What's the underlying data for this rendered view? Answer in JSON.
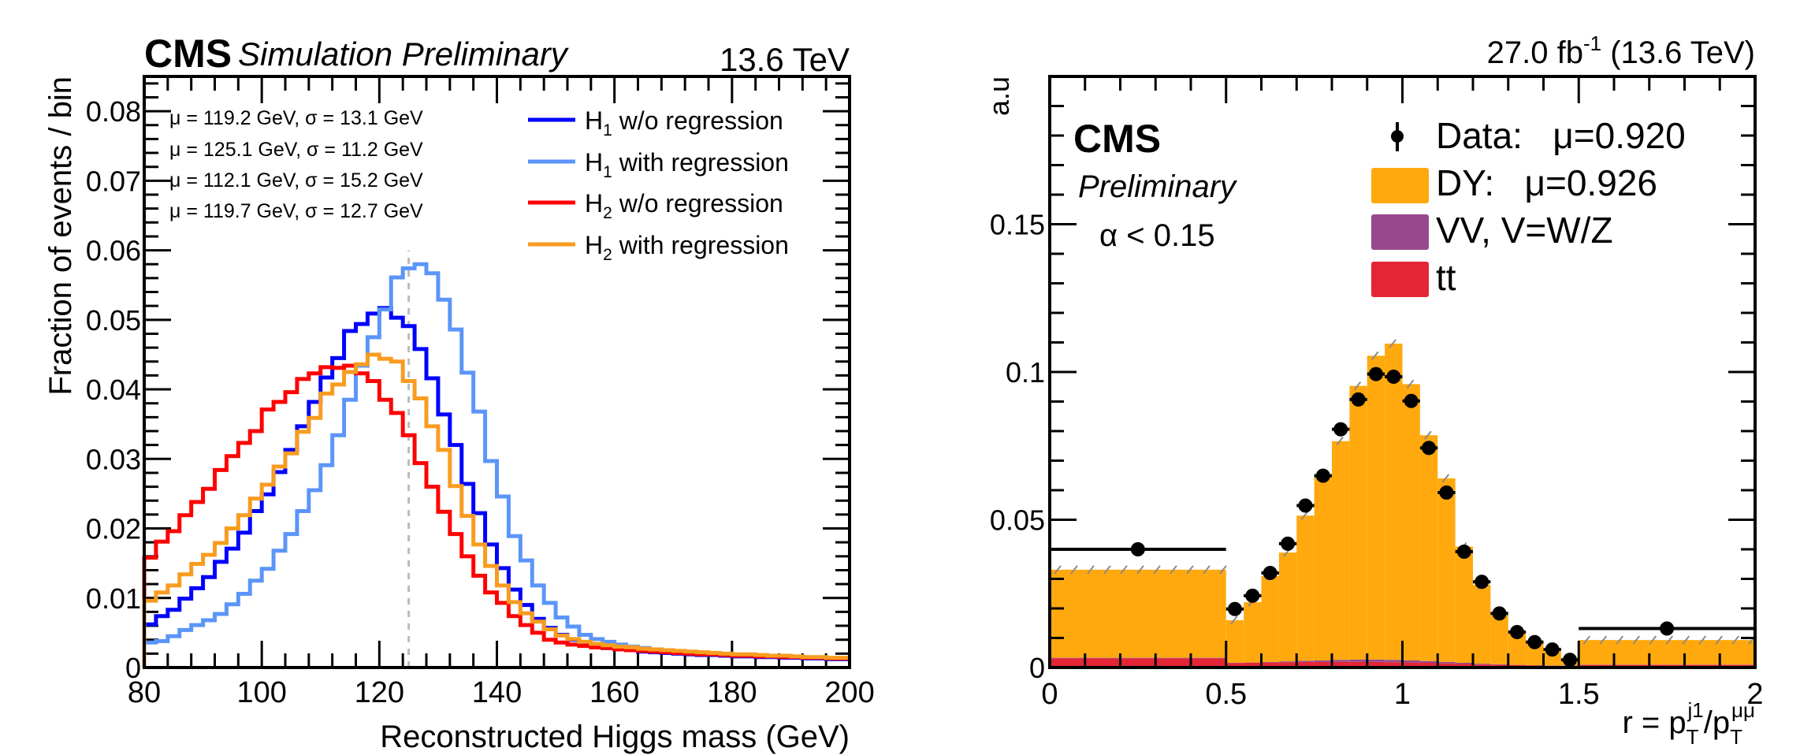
{
  "chart_data": [
    {
      "type": "line",
      "style": "step-histogram",
      "header": {
        "cms_label": "CMS",
        "extra_label": "Simulation Preliminary",
        "energy_label": "13.6 TeV"
      },
      "xlabel": "Reconstructed Higgs mass (GeV)",
      "ylabel": "Fraction of events / bin",
      "xlim": [
        80,
        200
      ],
      "ylim": [
        0,
        0.085
      ],
      "xticks": [
        80,
        100,
        120,
        140,
        160,
        180,
        200
      ],
      "yticks": [
        0,
        0.01,
        0.02,
        0.03,
        0.04,
        0.05,
        0.06,
        0.07,
        0.08
      ],
      "ytick_labels": [
        "0",
        "0.01",
        "0.02",
        "0.03",
        "0.04",
        "0.05",
        "0.06",
        "0.07",
        "0.08"
      ],
      "bin_width": 2,
      "reference_line": {
        "x": 125,
        "ymax": 0.06,
        "style": "dashed",
        "color": "#bbbbbb"
      },
      "fit_annotations": [
        {
          "text": "μ = 119.2 GeV,   σ = 13.1 GeV",
          "mu": 119.2,
          "sigma": 13.1,
          "color": "#0000ff"
        },
        {
          "text": "μ = 125.1 GeV,   σ = 11.2 GeV",
          "mu": 125.1,
          "sigma": 11.2,
          "color": "#5b95f9"
        },
        {
          "text": "μ = 112.1 GeV,   σ = 15.2 GeV",
          "mu": 112.1,
          "sigma": 15.2,
          "color": "#ff0000"
        },
        {
          "text": "μ = 119.7 GeV,   σ = 12.7 GeV",
          "mu": 119.7,
          "sigma": 12.7,
          "color": "#f89c20"
        }
      ],
      "legend": {
        "placement": "top-right"
      },
      "series": [
        {
          "name": "H1 w/o regression",
          "label_main": "H",
          "label_sub": "1",
          "label_rest": " w/o regression",
          "color": "#0000ff",
          "values": [
            0.0062,
            0.0074,
            0.0083,
            0.0099,
            0.0114,
            0.013,
            0.0152,
            0.0171,
            0.0194,
            0.0225,
            0.0249,
            0.0281,
            0.0313,
            0.0347,
            0.0382,
            0.0417,
            0.0445,
            0.0484,
            0.0494,
            0.0509,
            0.0517,
            0.0503,
            0.0491,
            0.0458,
            0.0416,
            0.0364,
            0.032,
            0.0264,
            0.0222,
            0.0177,
            0.0143,
            0.0112,
            0.009,
            0.007,
            0.0057,
            0.0047,
            0.004,
            0.0034,
            0.0031,
            0.0028,
            0.0026,
            0.0025,
            0.0023,
            0.0022,
            0.0021,
            0.002,
            0.0019,
            0.0018,
            0.0018,
            0.0017,
            0.0016,
            0.0016,
            0.0015,
            0.0015,
            0.0014,
            0.0014,
            0.0013,
            0.0013,
            0.0012,
            0.0012
          ]
        },
        {
          "name": "H1 with regression",
          "label_main": "H",
          "label_sub": "1",
          "label_rest": " with regression",
          "color": "#5b95f9",
          "values": [
            0.0036,
            0.0038,
            0.0045,
            0.0054,
            0.0061,
            0.0068,
            0.0077,
            0.0091,
            0.0106,
            0.0125,
            0.0142,
            0.0168,
            0.0192,
            0.0225,
            0.0255,
            0.0291,
            0.0334,
            0.0385,
            0.0434,
            0.0475,
            0.0515,
            0.0561,
            0.0574,
            0.058,
            0.0567,
            0.0529,
            0.0486,
            0.0424,
            0.0368,
            0.0297,
            0.0246,
            0.0189,
            0.0154,
            0.0118,
            0.0093,
            0.0072,
            0.0059,
            0.0047,
            0.0041,
            0.0037,
            0.0033,
            0.003,
            0.0028,
            0.0026,
            0.0025,
            0.0023,
            0.0022,
            0.0021,
            0.002,
            0.0019,
            0.0018,
            0.0017,
            0.0017,
            0.0016,
            0.0015,
            0.0015,
            0.0014,
            0.0014,
            0.0013,
            0.0013
          ]
        },
        {
          "name": "H2 w/o regression",
          "label_main": "H",
          "label_sub": "2",
          "label_rest": " w/o regression",
          "color": "#ff0000",
          "values": [
            0.0158,
            0.0181,
            0.0196,
            0.0219,
            0.0238,
            0.0257,
            0.0284,
            0.0304,
            0.0323,
            0.034,
            0.0371,
            0.0382,
            0.0396,
            0.0415,
            0.0423,
            0.0432,
            0.0431,
            0.0434,
            0.0423,
            0.0412,
            0.0385,
            0.0366,
            0.0334,
            0.0294,
            0.026,
            0.0224,
            0.0192,
            0.016,
            0.0132,
            0.0108,
            0.0093,
            0.0074,
            0.0061,
            0.005,
            0.004,
            0.0036,
            0.0033,
            0.0031,
            0.0029,
            0.0028,
            0.0026,
            0.0025,
            0.0024,
            0.0023,
            0.0022,
            0.0021,
            0.002,
            0.0019,
            0.0019,
            0.0018,
            0.0017,
            0.0017,
            0.0016,
            0.0016,
            0.0015,
            0.0015,
            0.0014,
            0.0014,
            0.0013,
            0.0013
          ]
        },
        {
          "name": "H2 with regression",
          "label_main": "H",
          "label_sub": "2",
          "label_rest": " with regression",
          "color": "#f89c20",
          "values": [
            0.0096,
            0.0108,
            0.0118,
            0.0134,
            0.0149,
            0.0162,
            0.0179,
            0.02,
            0.0219,
            0.0243,
            0.0263,
            0.0289,
            0.0308,
            0.0339,
            0.0359,
            0.0394,
            0.0407,
            0.0425,
            0.0436,
            0.045,
            0.0444,
            0.044,
            0.0412,
            0.0387,
            0.0347,
            0.0313,
            0.0261,
            0.0218,
            0.0177,
            0.0146,
            0.0118,
            0.0094,
            0.0078,
            0.0066,
            0.0055,
            0.0046,
            0.0041,
            0.0037,
            0.0034,
            0.0032,
            0.003,
            0.0029,
            0.0027,
            0.0026,
            0.0025,
            0.0024,
            0.0023,
            0.0022,
            0.0021,
            0.002,
            0.0019,
            0.0019,
            0.0018,
            0.0017,
            0.0017,
            0.0016,
            0.0015,
            0.0015,
            0.0014,
            0.0014
          ]
        }
      ]
    },
    {
      "type": "bar",
      "style": "stacked-histogram-with-data-points",
      "header": {
        "lumi_label": "27.0 fb",
        "lumi_sup": "-1",
        "energy_label": " (13.6 TeV)"
      },
      "inner_labels": {
        "cms_label": "CMS",
        "extra_label": "Preliminary",
        "selection_label": "α < 0.15"
      },
      "xlabel": {
        "prefix": "r = p",
        "sub1": "T",
        "sup1": "j1",
        "slash": "/p",
        "sub2": "T",
        "sup2": "μμ"
      },
      "ylabel": "a.u",
      "xlim": [
        0,
        2
      ],
      "ylim": [
        0,
        0.2
      ],
      "xticks": [
        0,
        0.5,
        1,
        1.5,
        2
      ],
      "xtick_labels": [
        "0",
        "0.5",
        "1",
        "1.5",
        "2"
      ],
      "yticks": [
        0,
        0.05,
        0.1,
        0.15
      ],
      "ytick_labels": [
        "0",
        "0.05",
        "0.1",
        "0.15"
      ],
      "legend": {
        "placement": "top-right",
        "entries": [
          {
            "label": "Data:   μ=0.920",
            "kind": "marker",
            "color": "#000000"
          },
          {
            "label": "DY:   μ=0.926",
            "kind": "box",
            "color": "#ffa90e"
          },
          {
            "label": "VV, V=W/Z",
            "kind": "box",
            "color": "#964a8b"
          },
          {
            "label": "tt",
            "kind": "box",
            "color": "#e42536"
          }
        ]
      },
      "bin_edges": [
        0,
        0.5,
        0.55,
        0.6,
        0.65,
        0.7,
        0.75,
        0.8,
        0.85,
        0.9,
        0.95,
        1.0,
        1.05,
        1.1,
        1.15,
        1.2,
        1.25,
        1.3,
        1.35,
        1.4,
        1.45,
        1.5,
        2.0
      ],
      "series": [
        {
          "name": "tt",
          "color": "#e42536",
          "values": [
            0.0031,
            0.0015,
            0.0016,
            0.0017,
            0.0018,
            0.0019,
            0.0019,
            0.0019,
            0.0019,
            0.0019,
            0.0018,
            0.0017,
            0.0016,
            0.0014,
            0.0012,
            0.001,
            0.0009,
            0.0008,
            0.0007,
            0.0006,
            0.0006,
            0.0009
          ]
        },
        {
          "name": "VV, V=W/Z",
          "color": "#964a8b",
          "values": [
            0.0002,
            0.0001,
            0.0001,
            0.0002,
            0.0003,
            0.0004,
            0.0005,
            0.0007,
            0.0008,
            0.0008,
            0.0008,
            0.0007,
            0.0006,
            0.0005,
            0.0004,
            0.0003,
            0.0002,
            0.0001,
            0.0001,
            0.0001,
            0.0001,
            0.0001
          ]
        },
        {
          "name": "DY",
          "color": "#ffa90e",
          "values": [
            0.0298,
            0.0144,
            0.0204,
            0.0291,
            0.0368,
            0.0491,
            0.0621,
            0.074,
            0.0926,
            0.1028,
            0.107,
            0.0935,
            0.0764,
            0.0621,
            0.0393,
            0.0267,
            0.0166,
            0.0107,
            0.0077,
            0.0047,
            0.0013,
            0.0083
          ]
        }
      ],
      "data_points": [
        0.04,
        0.0198,
        0.0243,
        0.032,
        0.0419,
        0.0548,
        0.0649,
        0.0806,
        0.0907,
        0.0993,
        0.0984,
        0.0902,
        0.0743,
        0.0592,
        0.0392,
        0.029,
        0.0183,
        0.012,
        0.0086,
        0.0061,
        0.0026,
        0.0132
      ],
      "data_errors": [
        0.0004,
        0.0006,
        0.0007,
        0.0008,
        0.0009,
        0.001,
        0.0011,
        0.0012,
        0.0013,
        0.0013,
        0.0013,
        0.0013,
        0.0012,
        0.0011,
        0.0009,
        0.0008,
        0.0007,
        0.0006,
        0.0005,
        0.0004,
        0.0003,
        0.0003
      ]
    }
  ]
}
